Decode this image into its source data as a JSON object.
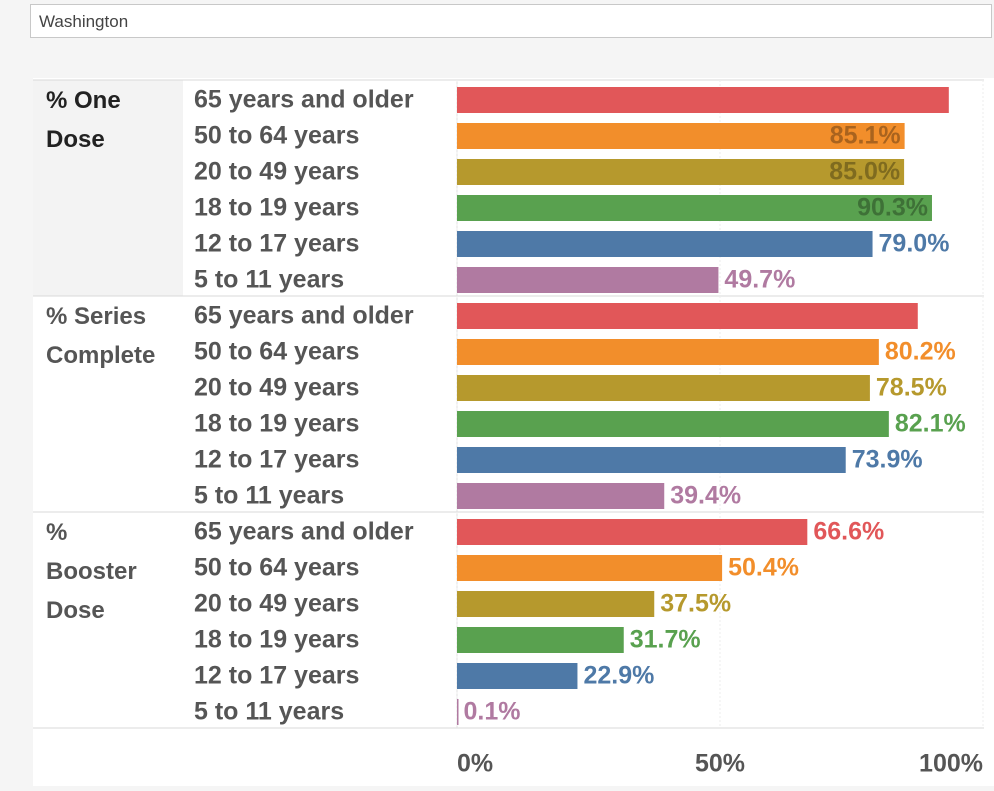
{
  "filter": "Washington",
  "chart_data": {
    "type": "bar",
    "categories": [
      "65 years and older",
      "50 to 64 years",
      "20 to 49 years",
      "18 to 19 years",
      "12 to 17 years",
      "5 to 11 years"
    ],
    "colors": [
      "#e15759",
      "#f28e2b",
      "#b6992d",
      "#59a14f",
      "#4e79a7",
      "#b07aa1"
    ],
    "series": [
      {
        "name": "% One Dose",
        "values": [
          93.5,
          85.1,
          85.0,
          90.3,
          79.0,
          49.7
        ],
        "value_labels": [
          null,
          "85.1%",
          "85.0%",
          "90.3%",
          "79.0%",
          "49.7%"
        ]
      },
      {
        "name": "% Series Complete",
        "values": [
          87.6,
          80.2,
          78.5,
          82.1,
          73.9,
          39.4
        ],
        "value_labels": [
          null,
          "80.2%",
          "78.5%",
          "82.1%",
          "73.9%",
          "39.4%"
        ]
      },
      {
        "name": "% Booster Dose",
        "values": [
          66.6,
          50.4,
          37.5,
          31.7,
          22.9,
          0.1
        ],
        "value_labels": [
          "66.6%",
          "50.4%",
          "37.5%",
          "31.7%",
          "22.9%",
          "0.1%"
        ]
      }
    ],
    "xlim": [
      0,
      100
    ],
    "xticks": [
      {
        "value": 0,
        "label": "0%"
      },
      {
        "value": 50,
        "label": "50%"
      },
      {
        "value": 100,
        "label": "100%"
      }
    ],
    "grid": true
  }
}
